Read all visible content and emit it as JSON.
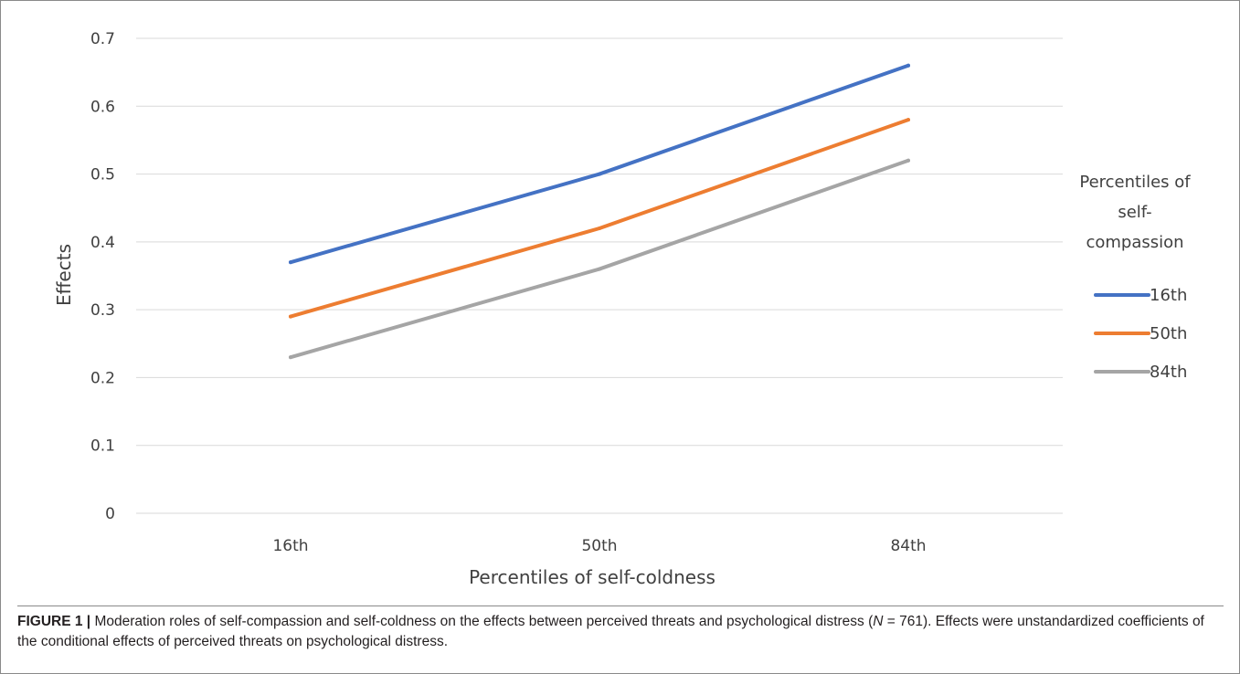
{
  "chart_data": {
    "type": "line",
    "title": "",
    "xlabel": "Percentiles of self-coldness",
    "ylabel": "Effects",
    "categories": [
      "16th",
      "50th",
      "84th"
    ],
    "ylim": [
      0,
      0.7
    ],
    "yticks": [
      "0",
      "0.1",
      "0.2",
      "0.3",
      "0.4",
      "0.5",
      "0.6",
      "0.7"
    ],
    "grid": true,
    "legend": {
      "title_lines": [
        "Percentiles of",
        "self-",
        "compassion"
      ],
      "placement": "right"
    },
    "series": [
      {
        "name": "16th",
        "color": "#4472c4",
        "values": [
          0.37,
          0.5,
          0.66
        ]
      },
      {
        "name": "50th",
        "color": "#ed7d31",
        "values": [
          0.29,
          0.42,
          0.58
        ]
      },
      {
        "name": "84th",
        "color": "#a5a5a5",
        "values": [
          0.23,
          0.36,
          0.52
        ]
      }
    ]
  },
  "caption": {
    "label": "FIGURE 1 |",
    "text_before_n": " Moderation roles of self-compassion and self-coldness on the effects between perceived threats and psychological distress (",
    "n_symbol": "N",
    "text_after_n": " = 761). Effects were unstandardized coefficients of the conditional effects of perceived threats on psychological distress."
  }
}
